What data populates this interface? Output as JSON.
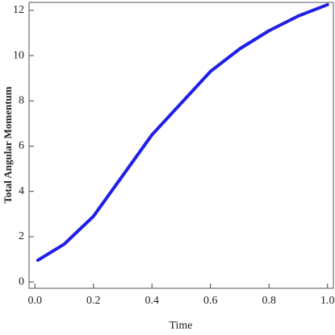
{
  "chart_data": {
    "type": "line",
    "x_label": "Time",
    "y_label": "Total Angular Momentum",
    "x": [
      0.01,
      0.1,
      0.2,
      0.3,
      0.4,
      0.5,
      0.6,
      0.7,
      0.8,
      0.9,
      1.0
    ],
    "series": [
      {
        "color": "#1f1fe6",
        "values": [
          0.96,
          1.67,
          2.9,
          4.7,
          6.5,
          7.9,
          9.3,
          10.3,
          11.1,
          11.75,
          12.25
        ]
      }
    ],
    "xlim": [
      -0.02,
      1.02
    ],
    "ylim": [
      -0.28,
      12.35
    ],
    "xticks": [
      {
        "value": 0,
        "label": "0.0"
      },
      {
        "value": 0.2,
        "label": "0.2"
      },
      {
        "value": 0.4,
        "label": "0.4"
      },
      {
        "value": 0.6,
        "label": "0.6"
      },
      {
        "value": 0.8,
        "label": "0.8"
      },
      {
        "value": 1,
        "label": "1.0"
      }
    ],
    "yticks": [
      0,
      2,
      4,
      6,
      8,
      10,
      12
    ]
  }
}
